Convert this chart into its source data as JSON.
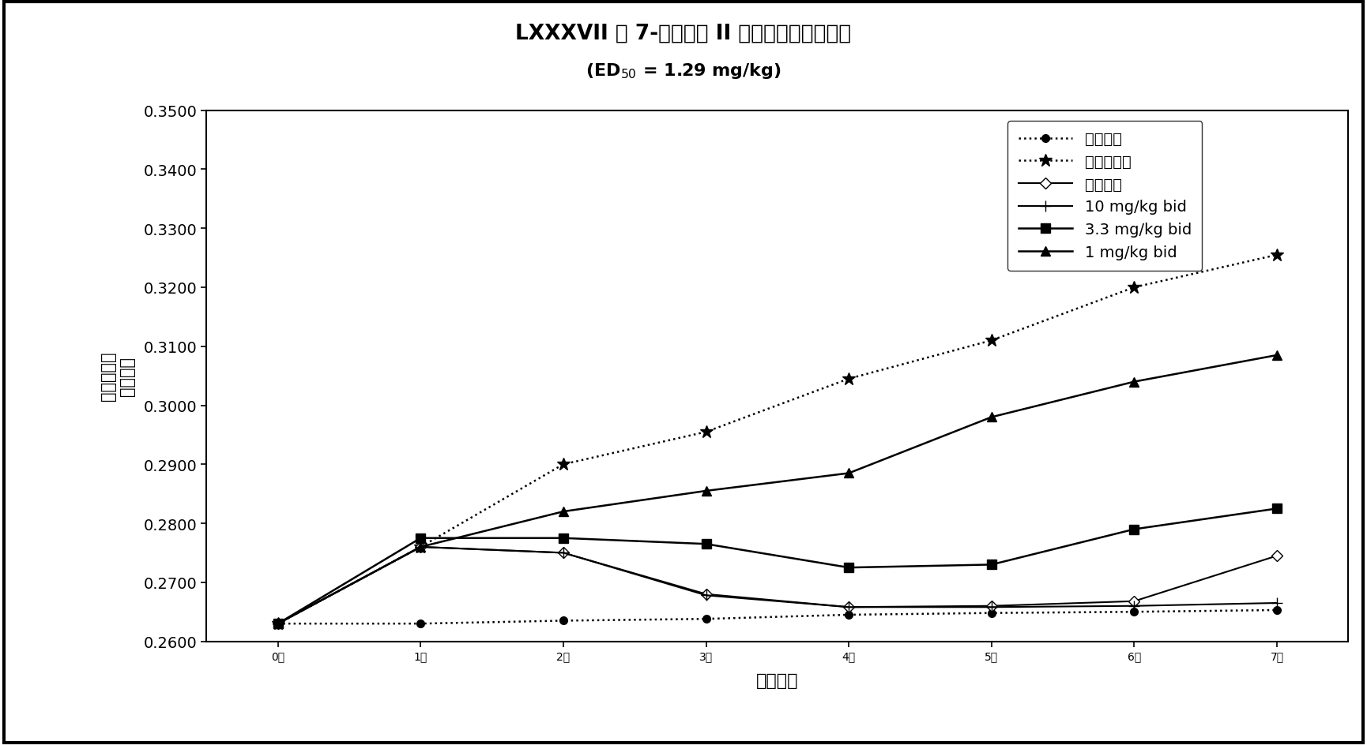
{
  "title_main": "LXXXVII 对 7-天建立的 II 型胶原关节炎的作用",
  "title_sub": "(ED$_{50}$ = 1.29 mg/kg)",
  "xlabel": "治疗天数",
  "ylabel_1": "平均蹏直径",
  "ylabel_2": "（英寸）",
  "x": [
    0,
    1,
    2,
    3,
    4,
    5,
    6,
    7
  ],
  "x_labels": [
    "0天",
    "1天",
    "2天",
    "3天",
    "4天",
    "5天",
    "6天",
    "7天"
  ],
  "series": [
    {
      "label": "正常对照",
      "y": [
        0.263,
        0.263,
        0.2635,
        0.2638,
        0.2645,
        0.2648,
        0.265,
        0.2653
      ],
      "linestyle": "dotted",
      "marker": "o",
      "markersize": 7,
      "linewidth": 1.8,
      "markerfacecolor": "#000000",
      "zorder": 3
    },
    {
      "label": "关节炎对照",
      "y": [
        0.263,
        0.276,
        0.29,
        0.2955,
        0.3045,
        0.311,
        0.32,
        0.3255
      ],
      "linestyle": "dotted",
      "marker": "*",
      "markersize": 12,
      "linewidth": 1.8,
      "markerfacecolor": "#000000",
      "zorder": 3
    },
    {
      "label": "地塞米松",
      "y": [
        0.263,
        0.276,
        0.275,
        0.268,
        0.2658,
        0.266,
        0.2668,
        0.2745
      ],
      "linestyle": "solid",
      "marker": "D",
      "markersize": 7,
      "linewidth": 1.5,
      "markerfacecolor": "white",
      "zorder": 3
    },
    {
      "label": "10 mg/kg bid",
      "y": [
        0.263,
        0.276,
        0.275,
        0.2678,
        0.2658,
        0.2658,
        0.266,
        0.2665
      ],
      "linestyle": "solid",
      "marker": "+",
      "markersize": 10,
      "linewidth": 1.5,
      "markerfacecolor": "#000000",
      "zorder": 3
    },
    {
      "label": "3.3 mg/kg bid",
      "y": [
        0.263,
        0.2775,
        0.2775,
        0.2765,
        0.2725,
        0.273,
        0.279,
        0.2825
      ],
      "linestyle": "solid",
      "marker": "s",
      "markersize": 9,
      "linewidth": 1.8,
      "markerfacecolor": "#000000",
      "zorder": 3
    },
    {
      "label": "1 mg/kg bid",
      "y": [
        0.263,
        0.276,
        0.282,
        0.2855,
        0.2885,
        0.298,
        0.304,
        0.3085
      ],
      "linestyle": "solid",
      "marker": "^",
      "markersize": 9,
      "linewidth": 1.8,
      "markerfacecolor": "#000000",
      "zorder": 3
    }
  ],
  "ylim": [
    0.26,
    0.35
  ],
  "yticks": [
    0.26,
    0.27,
    0.28,
    0.29,
    0.3,
    0.31,
    0.32,
    0.33,
    0.34,
    0.35
  ],
  "bg_color": "#ffffff",
  "line_color": "#000000"
}
